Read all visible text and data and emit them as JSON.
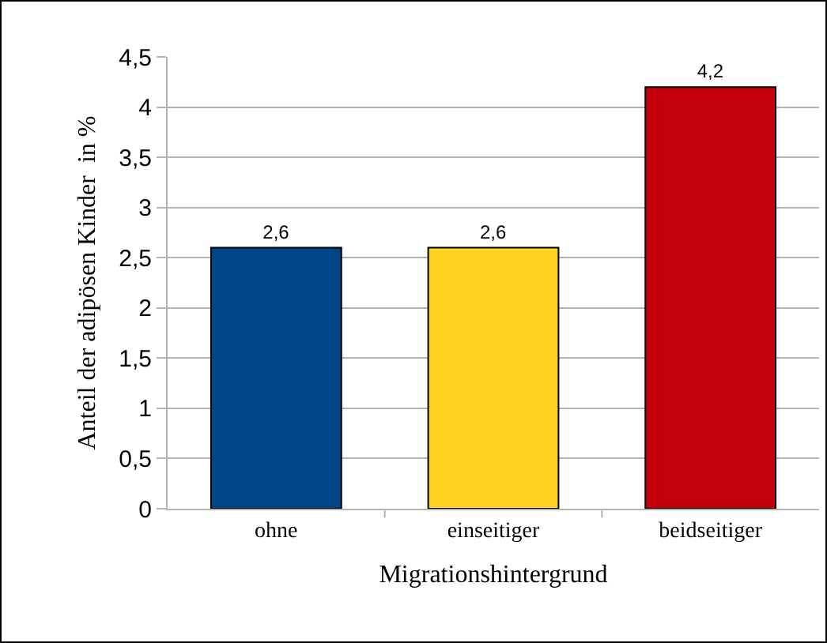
{
  "chart_data": {
    "type": "bar",
    "xlabel": "Migrationshintergrund",
    "ylabel": "Anteil der adipösen Kinder  in %",
    "categories": [
      "ohne",
      "einseitiger",
      "beidseitiger"
    ],
    "values": [
      2.6,
      2.6,
      4.2
    ],
    "value_labels": [
      "2,6",
      "2,6",
      "4,2"
    ],
    "colors": [
      "#004586",
      "#ffd320",
      "#c5000b"
    ],
    "ylim": [
      0,
      4.5
    ],
    "yticks": [
      0,
      {
        "value": 0.5,
        "label": "0,5"
      },
      1,
      {
        "value": 1.5,
        "label": "1,5"
      },
      2,
      {
        "value": 2.5,
        "label": "2,5"
      },
      3,
      {
        "value": 3.5,
        "label": "3,5"
      },
      4,
      {
        "value": 4.5,
        "label": "4,5"
      }
    ],
    "grid": "y"
  }
}
